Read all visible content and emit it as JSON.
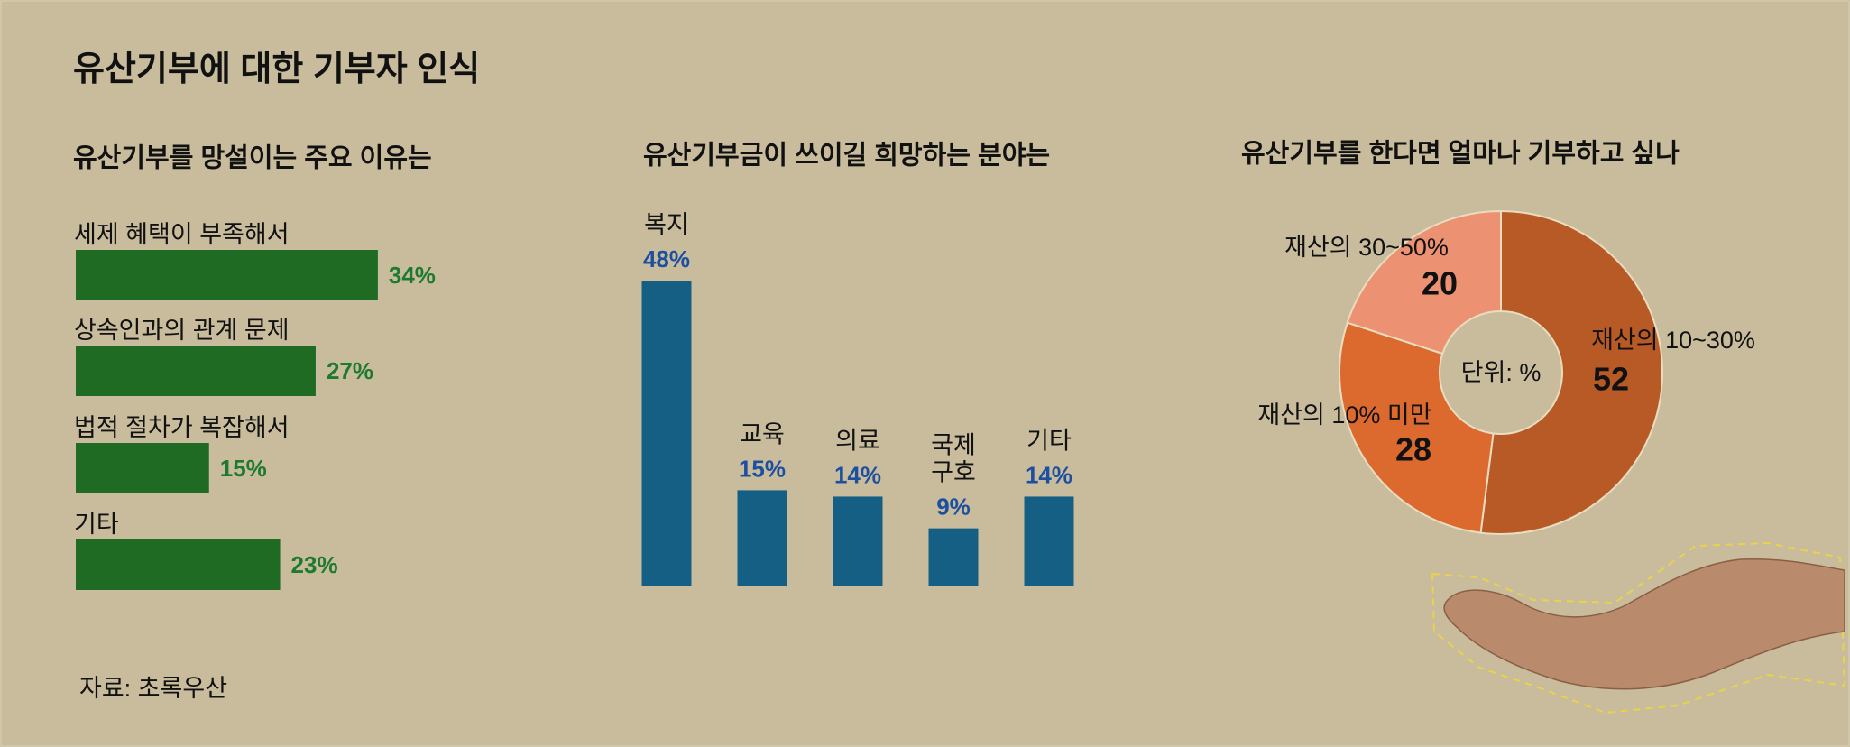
{
  "title": "유산기부에 대한 기부자 인식",
  "source": "자료: 초록우산",
  "chart_data": [
    {
      "type": "hbar",
      "title": "유산기부를 망설이는 주요 이유는",
      "categories": [
        "세제 혜택이 부족해서",
        "상속인과의 관계 문제",
        "법적 절차가 복잡해서",
        "기타"
      ],
      "values": [
        34,
        27,
        15,
        23
      ],
      "value_labels": [
        "34%",
        "27%",
        "15%",
        "23%"
      ],
      "color": "#1f6b24",
      "label_color": "#1e7a2e"
    },
    {
      "type": "bar",
      "title": "유산기부금이 쓰이길 희망하는 분야는",
      "categories": [
        "복지",
        "교육",
        "의료",
        "국제\n구호",
        "기타"
      ],
      "values": [
        48,
        15,
        14,
        9,
        14
      ],
      "value_labels": [
        "48%",
        "15%",
        "14%",
        "9%",
        "14%"
      ],
      "color": "#155f85",
      "label_color": "#1d4fa0"
    },
    {
      "type": "pie",
      "title": "유산기부를 한다면 얼마나 기부하고 싶나",
      "categories": [
        "재산의 10~30%",
        "재산의 10% 미만",
        "재산의 30~50%"
      ],
      "values": [
        52,
        28,
        20
      ],
      "colors": [
        "#b85a26",
        "#dc6a2e",
        "#ec9272"
      ],
      "center_label": "단위: %"
    }
  ]
}
